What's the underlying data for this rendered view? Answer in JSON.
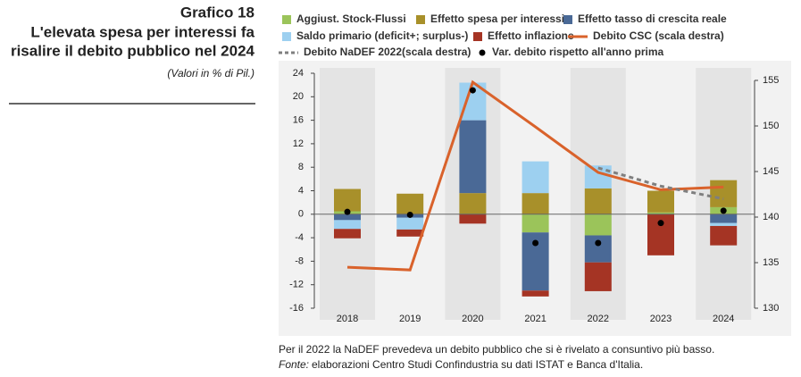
{
  "header": {
    "label": "Grafico 18",
    "title_lines": [
      "L'elevata spesa per interessi fa",
      "risalire il debito pubblico nel 2024"
    ],
    "subtitle": "(Valori in % di Pil.)"
  },
  "chart_data": {
    "type": "bar",
    "categories": [
      "2018",
      "2019",
      "2020",
      "2021",
      "2022",
      "2023",
      "2024"
    ],
    "ylim": [
      -16,
      24
    ],
    "yticks": [
      -16,
      -12,
      -8,
      -4,
      0,
      4,
      8,
      12,
      16,
      20,
      24
    ],
    "y2lim": [
      130,
      155
    ],
    "y2ticks": [
      130,
      135,
      140,
      145,
      150,
      155
    ],
    "series": [
      {
        "name": "Aggiust. Stock-Flussi",
        "type": "bar",
        "color": "#9bc45a",
        "values": [
          0.5,
          0,
          0,
          -3.1,
          -3.6,
          0.3,
          1.2
        ]
      },
      {
        "name": "Effetto spesa per interessi",
        "type": "bar",
        "color": "#a8902a",
        "values": [
          3.8,
          3.5,
          3.6,
          3.6,
          4.4,
          3.7,
          4.6
        ]
      },
      {
        "name": "Effetto tasso di crescita reale",
        "type": "bar",
        "color": "#4a6996",
        "values": [
          -1.0,
          -0.6,
          12.4,
          -9.9,
          -4.6,
          0,
          -1.5
        ]
      },
      {
        "name": "Saldo primario (deficit+; surplus-)",
        "type": "bar",
        "color": "#9dd0f0",
        "values": [
          -1.5,
          -2.0,
          6.4,
          5.4,
          3.9,
          0,
          -0.5
        ]
      },
      {
        "name": "Effetto inflazione",
        "type": "bar",
        "color": "#a53424",
        "values": [
          -1.6,
          -1.2,
          -1.6,
          -1.0,
          -4.9,
          -7.0,
          -3.3
        ]
      },
      {
        "name": "Debito CSC (scala destra)",
        "type": "line",
        "axis": "y2",
        "color": "#d9622b",
        "values": [
          134.5,
          134.2,
          154.8,
          149.9,
          144.9,
          143.0,
          143.3
        ]
      },
      {
        "name": "Debito NaDEF 2022(scala destra)",
        "type": "line",
        "axis": "y2",
        "dashed": true,
        "color": "#7f7f7f",
        "values": [
          null,
          null,
          null,
          null,
          145.4,
          143.4,
          142.0
        ]
      },
      {
        "name": "Var. debito rispetto all'anno prima",
        "type": "scatter",
        "color": "#000000",
        "values": [
          0.4,
          -0.1,
          21.1,
          -4.9,
          -4.9,
          -1.5,
          0.6
        ]
      }
    ]
  },
  "footer": {
    "note": "Per il 2022 la NaDEF prevedeva un debito pubblico che si è rivelato a consuntivo più basso.",
    "source_label": "Fonte:",
    "source": "elaborazioni Centro Studi Confindustria su dati ISTAT e Banca d'Italia."
  }
}
